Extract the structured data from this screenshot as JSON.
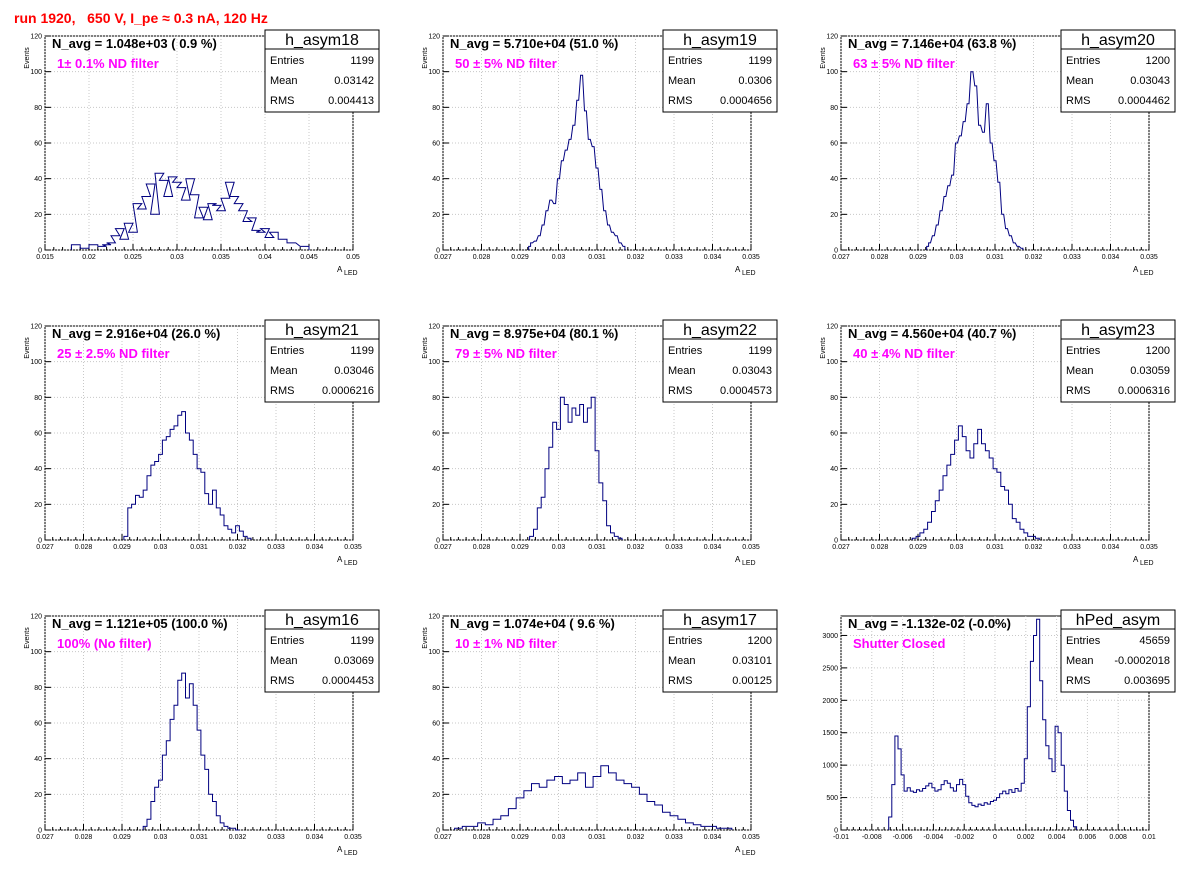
{
  "title": "run 1920,   650 V, I_pe ≈ 0.3 nA, 120 Hz",
  "chart_data": [
    {
      "type": "bar",
      "name": "h_asym18",
      "navg": "N_avg = 1.048e+03 ( 0.9 %)",
      "filter": "1± 0.1% ND filter",
      "stats": [
        [
          "Entries",
          "1199"
        ],
        [
          "Mean",
          "0.03142"
        ],
        [
          "RMS",
          "0.004413"
        ]
      ],
      "xlabel": "A",
      "xlabel_sub": "LED",
      "ylabel": "Events",
      "xlim": [
        0.015,
        0.05
      ],
      "xticks": [
        "0.015",
        "0.02",
        "0.025",
        "0.03",
        "0.035",
        "0.04",
        "0.045",
        "0.05"
      ],
      "ylim": [
        0,
        120
      ],
      "yticks": [
        "0",
        "20",
        "40",
        "60",
        "80",
        "100",
        "120"
      ],
      "x": [
        0.0185,
        0.0195,
        0.0205,
        0.0215,
        0.022,
        0.0225,
        0.023,
        0.0235,
        0.024,
        0.0245,
        0.025,
        0.0255,
        0.026,
        0.0265,
        0.027,
        0.0275,
        0.028,
        0.0285,
        0.029,
        0.0295,
        0.03,
        0.0305,
        0.031,
        0.0315,
        0.032,
        0.0325,
        0.033,
        0.0335,
        0.034,
        0.0345,
        0.035,
        0.0355,
        0.036,
        0.0365,
        0.037,
        0.0375,
        0.038,
        0.0385,
        0.039,
        0.0395,
        0.04,
        0.0405,
        0.041,
        0.042,
        0.043,
        0.0445
      ],
      "values": [
        3,
        1,
        3,
        2,
        3,
        4,
        8,
        12,
        6,
        15,
        10,
        26,
        23,
        30,
        37,
        20,
        43,
        39,
        30,
        41,
        38,
        35,
        28,
        40,
        31,
        18,
        24,
        17,
        26,
        25,
        22,
        29,
        38,
        30,
        26,
        22,
        16,
        18,
        11,
        10,
        12,
        7,
        10,
        6,
        4,
        2
      ]
    },
    {
      "type": "bar",
      "name": "h_asym19",
      "navg": "N_avg = 5.710e+04 (51.0 %)",
      "filter": "50 ± 5% ND filter",
      "stats": [
        [
          "Entries",
          "1199"
        ],
        [
          "Mean",
          "0.0306"
        ],
        [
          "RMS",
          "0.0004656"
        ]
      ],
      "xlabel": "A",
      "xlabel_sub": "LED",
      "ylabel": "Events",
      "xlim": [
        0.027,
        0.035
      ],
      "xticks": [
        "0.027",
        "0.028",
        "0.029",
        "0.03",
        "0.031",
        "0.032",
        "0.033",
        "0.034",
        "0.035"
      ],
      "ylim": [
        0,
        120
      ],
      "yticks": [
        "0",
        "20",
        "40",
        "60",
        "80",
        "100",
        "120"
      ],
      "x": [
        0.02925,
        0.0293,
        0.0294,
        0.0295,
        0.0296,
        0.0297,
        0.0298,
        0.0299,
        0.03,
        0.0301,
        0.0302,
        0.0303,
        0.0304,
        0.0305,
        0.0306,
        0.0307,
        0.0308,
        0.0309,
        0.031,
        0.0311,
        0.0312,
        0.0313,
        0.0314,
        0.0315,
        0.0316,
        0.0317
      ],
      "values": [
        2,
        4,
        5,
        8,
        14,
        22,
        28,
        26,
        40,
        50,
        56,
        62,
        70,
        84,
        98,
        78,
        62,
        58,
        46,
        34,
        22,
        14,
        10,
        8,
        4,
        2
      ]
    },
    {
      "type": "bar",
      "name": "h_asym20",
      "navg": "N_avg = 7.146e+04 (63.8 %)",
      "filter": "63 ± 5% ND filter",
      "stats": [
        [
          "Entries",
          "1200"
        ],
        [
          "Mean",
          "0.03043"
        ],
        [
          "RMS",
          "0.0004462"
        ]
      ],
      "xlabel": "A",
      "xlabel_sub": "LED",
      "ylabel": "Events",
      "xlim": [
        0.027,
        0.035
      ],
      "xticks": [
        "0.027",
        "0.028",
        "0.029",
        "0.03",
        "0.031",
        "0.032",
        "0.033",
        "0.034",
        "0.035"
      ],
      "ylim": [
        0,
        120
      ],
      "yticks": [
        "0",
        "20",
        "40",
        "60",
        "80",
        "100",
        "120"
      ],
      "x": [
        0.02925,
        0.0293,
        0.0294,
        0.0295,
        0.0296,
        0.0297,
        0.0298,
        0.0299,
        0.03,
        0.0301,
        0.0302,
        0.0303,
        0.0304,
        0.0305,
        0.0306,
        0.0307,
        0.0308,
        0.0309,
        0.031,
        0.0311,
        0.0312,
        0.0313,
        0.0314,
        0.0315,
        0.0316,
        0.0317
      ],
      "values": [
        2,
        4,
        8,
        14,
        22,
        30,
        36,
        42,
        60,
        64,
        72,
        82,
        100,
        92,
        70,
        66,
        82,
        60,
        50,
        38,
        20,
        12,
        8,
        4,
        2,
        1
      ]
    },
    {
      "type": "bar",
      "name": "h_asym21",
      "navg": "N_avg = 2.916e+04 (26.0 %)",
      "filter": "25 ± 2.5% ND filter",
      "stats": [
        [
          "Entries",
          "1199"
        ],
        [
          "Mean",
          "0.03046"
        ],
        [
          "RMS",
          "0.0006216"
        ]
      ],
      "xlabel": "A",
      "xlabel_sub": "LED",
      "ylabel": "Events",
      "xlim": [
        0.027,
        0.035
      ],
      "xticks": [
        "0.027",
        "0.028",
        "0.029",
        "0.03",
        "0.031",
        "0.032",
        "0.033",
        "0.034",
        "0.035"
      ],
      "ylim": [
        0,
        120
      ],
      "yticks": [
        "0",
        "20",
        "40",
        "60",
        "80",
        "100",
        "120"
      ],
      "x": [
        0.0291,
        0.0292,
        0.0293,
        0.0294,
        0.0295,
        0.0296,
        0.0297,
        0.0298,
        0.0299,
        0.03,
        0.0301,
        0.0302,
        0.0303,
        0.0304,
        0.0305,
        0.0306,
        0.0307,
        0.0308,
        0.0309,
        0.031,
        0.0311,
        0.0312,
        0.0313,
        0.0314,
        0.0315,
        0.0316,
        0.0317,
        0.0318,
        0.0319,
        0.032,
        0.0321,
        0.0322,
        0.0323
      ],
      "values": [
        2,
        18,
        20,
        25,
        24,
        28,
        36,
        42,
        44,
        48,
        56,
        58,
        62,
        64,
        70,
        72,
        60,
        56,
        48,
        40,
        38,
        26,
        20,
        28,
        18,
        14,
        8,
        6,
        4,
        8,
        5,
        2,
        1
      ]
    },
    {
      "type": "bar",
      "name": "h_asym22",
      "navg": "N_avg = 8.975e+04 (80.1 %)",
      "filter": "79 ± 5% ND filter",
      "stats": [
        [
          "Entries",
          "1199"
        ],
        [
          "Mean",
          "0.03043"
        ],
        [
          "RMS",
          "0.0004573"
        ]
      ],
      "xlabel": "A",
      "xlabel_sub": "LED",
      "ylabel": "Events",
      "xlim": [
        0.027,
        0.035
      ],
      "xticks": [
        "0.027",
        "0.028",
        "0.029",
        "0.03",
        "0.031",
        "0.032",
        "0.033",
        "0.034",
        "0.035"
      ],
      "ylim": [
        0,
        120
      ],
      "yticks": [
        "0",
        "20",
        "40",
        "60",
        "80",
        "100",
        "120"
      ],
      "x": [
        0.0293,
        0.0294,
        0.0295,
        0.0296,
        0.0297,
        0.0298,
        0.0299,
        0.03,
        0.0301,
        0.0302,
        0.0303,
        0.0304,
        0.0305,
        0.0306,
        0.0307,
        0.0308,
        0.0309,
        0.031,
        0.0311,
        0.0312,
        0.0313,
        0.0314,
        0.0315,
        0.0316
      ],
      "values": [
        2,
        6,
        18,
        24,
        40,
        52,
        66,
        62,
        80,
        76,
        66,
        74,
        70,
        76,
        66,
        74,
        80,
        50,
        32,
        22,
        8,
        4,
        2,
        1
      ]
    },
    {
      "type": "bar",
      "name": "h_asym23",
      "navg": "N_avg = 4.560e+04 (40.7 %)",
      "filter": "40 ± 4% ND filter",
      "stats": [
        [
          "Entries",
          "1200"
        ],
        [
          "Mean",
          "0.03059"
        ],
        [
          "RMS",
          "0.0006316"
        ]
      ],
      "xlabel": "A",
      "xlabel_sub": "LED",
      "ylabel": "Events",
      "xlim": [
        0.027,
        0.035
      ],
      "xticks": [
        "0.027",
        "0.028",
        "0.029",
        "0.03",
        "0.031",
        "0.032",
        "0.033",
        "0.034",
        "0.035"
      ],
      "ylim": [
        0,
        120
      ],
      "yticks": [
        "0",
        "20",
        "40",
        "60",
        "80",
        "100",
        "120"
      ],
      "x": [
        0.0289,
        0.029,
        0.0291,
        0.0292,
        0.0293,
        0.0294,
        0.0295,
        0.0296,
        0.0297,
        0.0298,
        0.0299,
        0.03,
        0.0301,
        0.0302,
        0.0303,
        0.0304,
        0.0305,
        0.0306,
        0.0307,
        0.0308,
        0.0309,
        0.031,
        0.0311,
        0.0312,
        0.0313,
        0.0314,
        0.0315,
        0.0316,
        0.0317,
        0.0318,
        0.0319,
        0.032,
        0.0321
      ],
      "values": [
        1,
        2,
        4,
        6,
        10,
        16,
        22,
        28,
        36,
        42,
        48,
        56,
        64,
        58,
        50,
        46,
        54,
        62,
        54,
        50,
        46,
        40,
        38,
        30,
        28,
        20,
        12,
        10,
        6,
        4,
        2,
        2,
        1
      ]
    },
    {
      "type": "bar",
      "name": "h_asym16",
      "navg": "N_avg = 1.121e+05 (100.0 %)",
      "filter": "100% (No filter)",
      "stats": [
        [
          "Entries",
          "1199"
        ],
        [
          "Mean",
          "0.03069"
        ],
        [
          "RMS",
          "0.0004453"
        ]
      ],
      "xlabel": "A",
      "xlabel_sub": "LED",
      "ylabel": "Events",
      "xlim": [
        0.027,
        0.035
      ],
      "xticks": [
        "0.027",
        "0.028",
        "0.029",
        "0.03",
        "0.031",
        "0.032",
        "0.033",
        "0.034",
        "0.035"
      ],
      "ylim": [
        0,
        120
      ],
      "yticks": [
        "0",
        "20",
        "40",
        "60",
        "80",
        "100",
        "120"
      ],
      "x": [
        0.0296,
        0.0297,
        0.0298,
        0.0299,
        0.03,
        0.0301,
        0.0302,
        0.0303,
        0.0304,
        0.0305,
        0.0306,
        0.0307,
        0.0308,
        0.0309,
        0.031,
        0.0311,
        0.0312,
        0.0313,
        0.0314,
        0.0315,
        0.0316,
        0.0317,
        0.0318,
        0.0319,
        0.032
      ],
      "values": [
        2,
        6,
        16,
        24,
        28,
        42,
        50,
        62,
        70,
        84,
        88,
        74,
        82,
        70,
        56,
        42,
        34,
        20,
        16,
        8,
        4,
        2,
        1,
        1,
        0
      ]
    },
    {
      "type": "bar",
      "name": "h_asym17",
      "navg": "N_avg = 1.074e+04 ( 9.6 %)",
      "filter": "10 ± 1% ND filter",
      "stats": [
        [
          "Entries",
          "1200"
        ],
        [
          "Mean",
          "0.03101"
        ],
        [
          "RMS",
          "0.00125"
        ]
      ],
      "xlabel": "A",
      "xlabel_sub": "LED",
      "ylabel": "Events",
      "xlim": [
        0.027,
        0.035
      ],
      "xticks": [
        "0.027",
        "0.028",
        "0.029",
        "0.03",
        "0.031",
        "0.032",
        "0.033",
        "0.034",
        "0.035"
      ],
      "ylim": [
        0,
        120
      ],
      "yticks": [
        "0",
        "20",
        "40",
        "60",
        "80",
        "100",
        "120"
      ],
      "x": [
        0.0274,
        0.0276,
        0.0278,
        0.028,
        0.0282,
        0.0284,
        0.0286,
        0.0288,
        0.029,
        0.0292,
        0.0294,
        0.0296,
        0.0298,
        0.03,
        0.0302,
        0.0304,
        0.0306,
        0.0308,
        0.031,
        0.0312,
        0.0314,
        0.0316,
        0.0318,
        0.032,
        0.0322,
        0.0324,
        0.0326,
        0.0328,
        0.033,
        0.0332,
        0.0334,
        0.0336,
        0.0338,
        0.034,
        0.0342,
        0.0344
      ],
      "values": [
        1,
        2,
        2,
        4,
        3,
        6,
        8,
        12,
        18,
        22,
        26,
        24,
        28,
        30,
        26,
        28,
        32,
        24,
        30,
        36,
        32,
        28,
        26,
        24,
        20,
        16,
        14,
        10,
        8,
        6,
        4,
        3,
        2,
        2,
        1,
        1
      ]
    },
    {
      "type": "bar",
      "name": "hPed_asym",
      "navg": "N_avg = -1.132e-02 (-0.0%)",
      "filter": "Shutter Closed",
      "stats": [
        [
          "Entries",
          "45659"
        ],
        [
          "Mean",
          "-0.0002018"
        ],
        [
          "RMS",
          "0.003695"
        ]
      ],
      "xlabel": "",
      "xlabel_sub": "",
      "ylabel": "",
      "xlim": [
        -0.01,
        0.01
      ],
      "xticks": [
        "-0.01",
        "-0.008",
        "-0.006",
        "-0.004",
        "-0.002",
        "0",
        "0.002",
        "0.004",
        "0.006",
        "0.008",
        "0.01"
      ],
      "ylim": [
        0,
        3300
      ],
      "yticks": [
        "0",
        "500",
        "1000",
        "1500",
        "2000",
        "2500",
        "3000"
      ],
      "x": [
        -0.0068,
        -0.0066,
        -0.0064,
        -0.0062,
        -0.006,
        -0.0058,
        -0.0056,
        -0.0054,
        -0.0052,
        -0.005,
        -0.0048,
        -0.0046,
        -0.0044,
        -0.0042,
        -0.004,
        -0.0038,
        -0.0036,
        -0.0034,
        -0.0032,
        -0.003,
        -0.0028,
        -0.0026,
        -0.0024,
        -0.0022,
        -0.002,
        -0.0018,
        -0.0016,
        -0.0014,
        -0.0012,
        -0.001,
        -0.0008,
        -0.0006,
        -0.0004,
        -0.0002,
        0,
        0.0002,
        0.0004,
        0.0006,
        0.0008,
        0.001,
        0.0012,
        0.0014,
        0.0016,
        0.0018,
        0.002,
        0.0022,
        0.0024,
        0.0026,
        0.0028,
        0.003,
        0.0032,
        0.0034,
        0.0036,
        0.0038,
        0.004,
        0.0042,
        0.0044,
        0.0046,
        0.0048,
        0.005,
        0.0052
      ],
      "values": [
        200,
        700,
        1450,
        1250,
        850,
        600,
        650,
        600,
        580,
        620,
        600,
        640,
        680,
        720,
        650,
        600,
        620,
        700,
        760,
        720,
        650,
        600,
        700,
        780,
        700,
        520,
        420,
        380,
        360,
        400,
        380,
        420,
        400,
        440,
        460,
        500,
        560,
        600,
        560,
        620,
        580,
        640,
        600,
        720,
        1100,
        1900,
        2600,
        3000,
        3250,
        2300,
        1700,
        1300,
        1100,
        900,
        1600,
        1500,
        1000,
        600,
        300,
        150,
        50
      ]
    }
  ]
}
